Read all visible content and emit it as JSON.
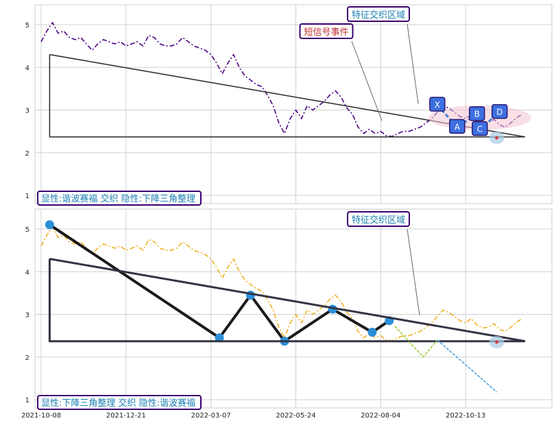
{
  "chart_data": [
    {
      "type": "line",
      "ylim": [
        0.8,
        5.3
      ],
      "yticks": [
        1,
        2,
        3,
        4,
        5
      ],
      "grid": true,
      "series": [
        {
          "color": "#4b0082",
          "style": "dash-dot",
          "points": [
            [
              0,
              4.6
            ],
            [
              2,
              4.85
            ],
            [
              4,
              5.05
            ],
            [
              6,
              4.8
            ],
            [
              8,
              4.85
            ],
            [
              10,
              4.7
            ],
            [
              12,
              4.65
            ],
            [
              14,
              4.7
            ],
            [
              16,
              4.55
            ],
            [
              18,
              4.4
            ],
            [
              20,
              4.55
            ],
            [
              22,
              4.65
            ],
            [
              24,
              4.6
            ],
            [
              26,
              4.55
            ],
            [
              28,
              4.6
            ],
            [
              30,
              4.5
            ],
            [
              32,
              4.55
            ],
            [
              34,
              4.6
            ],
            [
              36,
              4.5
            ],
            [
              38,
              4.75
            ],
            [
              40,
              4.7
            ],
            [
              42,
              4.55
            ],
            [
              44,
              4.5
            ],
            [
              46,
              4.5
            ],
            [
              48,
              4.55
            ],
            [
              50,
              4.7
            ],
            [
              52,
              4.6
            ],
            [
              54,
              4.5
            ],
            [
              56,
              4.45
            ],
            [
              58,
              4.4
            ],
            [
              60,
              4.3
            ],
            [
              62,
              4.1
            ],
            [
              64,
              3.85
            ],
            [
              66,
              4.1
            ],
            [
              68,
              4.3
            ],
            [
              70,
              4.0
            ],
            [
              72,
              3.8
            ],
            [
              74,
              3.7
            ],
            [
              76,
              3.6
            ],
            [
              78,
              3.55
            ],
            [
              80,
              3.35
            ],
            [
              82,
              3.1
            ],
            [
              84,
              2.7
            ],
            [
              86,
              2.45
            ],
            [
              88,
              2.8
            ],
            [
              90,
              3.0
            ],
            [
              92,
              2.8
            ],
            [
              94,
              3.1
            ],
            [
              96,
              3.0
            ],
            [
              98,
              3.1
            ],
            [
              100,
              3.2
            ],
            [
              102,
              3.35
            ],
            [
              104,
              3.45
            ],
            [
              106,
              3.3
            ],
            [
              108,
              3.05
            ],
            [
              110,
              2.9
            ],
            [
              112,
              2.6
            ],
            [
              114,
              2.45
            ],
            [
              116,
              2.55
            ],
            [
              118,
              2.45
            ],
            [
              120,
              2.5
            ],
            [
              122,
              2.4
            ],
            [
              124,
              2.38
            ],
            [
              126,
              2.45
            ],
            [
              128,
              2.5
            ],
            [
              130,
              2.5
            ],
            [
              132,
              2.55
            ],
            [
              134,
              2.6
            ],
            [
              136,
              2.7
            ],
            [
              138,
              2.8
            ],
            [
              140,
              2.95
            ],
            [
              142,
              3.1
            ],
            [
              144,
              3.05
            ],
            [
              146,
              2.95
            ],
            [
              148,
              2.85
            ],
            [
              150,
              2.8
            ],
            [
              152,
              2.9
            ],
            [
              154,
              2.75
            ],
            [
              156,
              2.68
            ],
            [
              158,
              2.7
            ],
            [
              160,
              2.78
            ],
            [
              162,
              2.65
            ],
            [
              164,
              2.6
            ],
            [
              166,
              2.7
            ],
            [
              168,
              2.82
            ],
            [
              170,
              2.9
            ]
          ]
        },
        {
          "color": "#333333",
          "style": "solid",
          "points": [
            [
              3,
              4.3
            ],
            [
              3,
              2.37
            ],
            [
              171,
              2.37
            ]
          ]
        },
        {
          "color": "#333333",
          "style": "solid",
          "points": [
            [
              3,
              4.3
            ],
            [
              171,
              2.37
            ]
          ]
        }
      ],
      "pattern_points": [
        {
          "label": "X",
          "x": 140,
          "y": 3.12
        },
        {
          "label": "A",
          "x": 147,
          "y": 2.6
        },
        {
          "label": "B",
          "x": 154,
          "y": 2.9
        },
        {
          "label": "C",
          "x": 155,
          "y": 2.55
        },
        {
          "label": "D",
          "x": 162,
          "y": 2.95
        }
      ],
      "annotations": [
        "特征交织区域",
        "短信号事件"
      ],
      "caption": "显性:谐波赛福 交织 隐性:下降三角整理"
    },
    {
      "type": "line",
      "ylim": [
        0.8,
        5.3
      ],
      "yticks": [
        1,
        2,
        3,
        4,
        5
      ],
      "grid": true,
      "x_ticks": [
        "2021-10-08",
        "2021-12-21",
        "2022-03-07",
        "2022-05-24",
        "2022-08-04",
        "2022-10-13"
      ],
      "series": [
        {
          "color": "#f0b020",
          "style": "dash-dot",
          "same_as_upper": true
        },
        {
          "color": "#1a1a1a",
          "style": "zigzag",
          "points": [
            [
              3,
              5.1
            ],
            [
              63,
              2.45
            ],
            [
              74,
              3.45
            ],
            [
              86,
              2.37
            ],
            [
              103,
              3.12
            ],
            [
              117,
              2.58
            ],
            [
              123,
              2.85
            ]
          ]
        },
        {
          "color": "#333344",
          "style": "solid",
          "points": [
            [
              3,
              4.3
            ],
            [
              3,
              2.37
            ],
            [
              171,
              2.37
            ]
          ]
        },
        {
          "color": "#333344",
          "style": "solid",
          "points": [
            [
              3,
              4.3
            ],
            [
              171,
              2.37
            ]
          ]
        },
        {
          "color": "#9acd32",
          "style": "projection",
          "points": [
            [
              125,
              2.72
            ],
            [
              135,
              2.0
            ],
            [
              140,
              2.4
            ]
          ]
        },
        {
          "color": "#4aa0e0",
          "style": "projection",
          "points": [
            [
              140,
              2.4
            ],
            [
              161,
              1.18
            ]
          ]
        }
      ],
      "annotations": [
        "特征交织区域"
      ],
      "caption": "显性:下降三角整理 交织 隐性:谐波赛福"
    }
  ]
}
